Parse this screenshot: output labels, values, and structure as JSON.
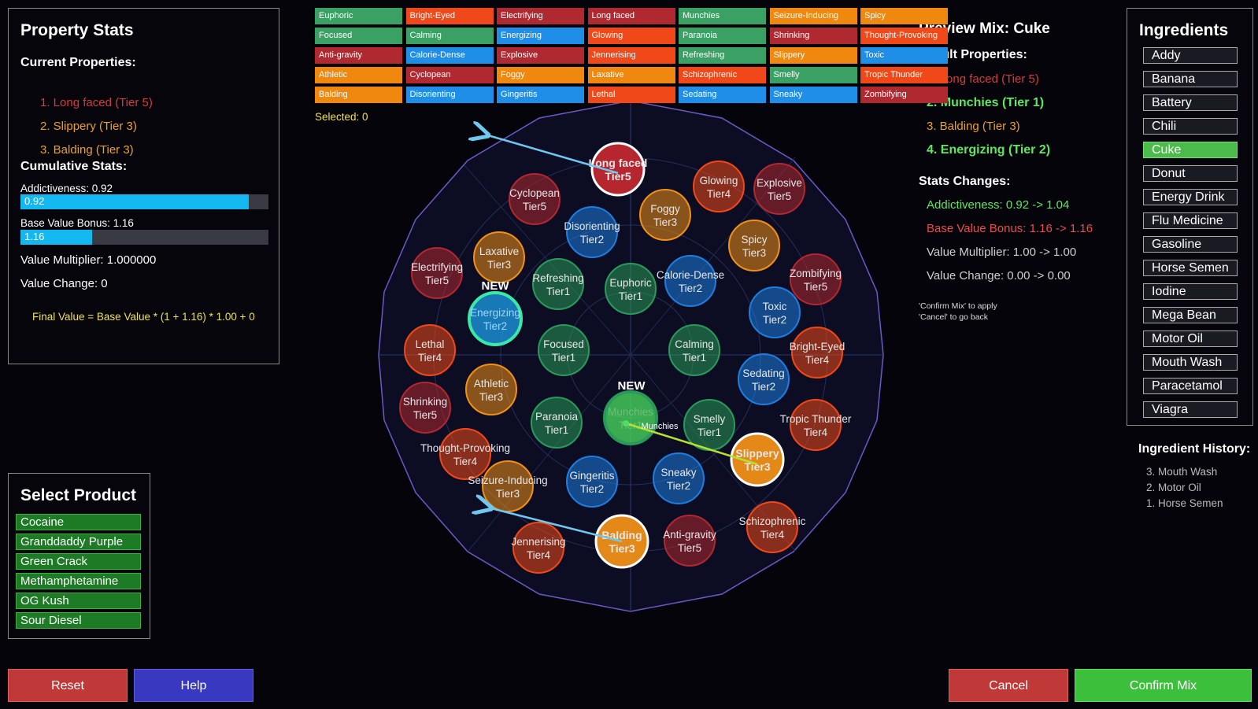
{
  "property_stats": {
    "title": "Property Stats",
    "current_header": "Current Properties:",
    "current": [
      {
        "text": "1. Long faced (Tier 5)",
        "color": "#d83a3a"
      },
      {
        "text": "2. Slippery (Tier 3)",
        "color": "#f0a020"
      },
      {
        "text": "3. Balding (Tier 3)",
        "color": "#f0a020"
      }
    ],
    "cumulative_header": "Cumulative Stats:",
    "addictiveness_label": "Addictiveness: 0.92",
    "addictiveness_bar_text": "0.92",
    "addictiveness_fraction": 0.92,
    "base_value_label": "Base Value Bonus: 1.16",
    "base_value_bar_text": "1.16",
    "base_value_fraction": 0.29,
    "value_multiplier": "Value Multiplier: 1.000000",
    "value_change": "Value Change: 0",
    "formula": "Final Value = Base Value * (1 + 1.16) * 1.00 + 0"
  },
  "select_product": {
    "title": "Select Product",
    "items": [
      "Cocaine",
      "Granddaddy Purple",
      "Green Crack",
      "Methamphetamine",
      "OG Kush",
      "Sour Diesel"
    ]
  },
  "buttons": {
    "reset": "Reset",
    "help": "Help",
    "cancel": "Cancel",
    "confirm": "Confirm Mix"
  },
  "tags": {
    "selected": "Selected: 0",
    "items": [
      [
        "Euphoric",
        "#3aa064"
      ],
      [
        "Bright-Eyed",
        "#f04818"
      ],
      [
        "Electrifying",
        "#b02830"
      ],
      [
        "Long faced",
        "#b02830"
      ],
      [
        "Munchies",
        "#3aa064"
      ],
      [
        "Seizure-Inducing",
        "#f08810"
      ],
      [
        "Spicy",
        "#f08810"
      ],
      [
        "Focused",
        "#3aa064"
      ],
      [
        "Calming",
        "#3aa064"
      ],
      [
        "Energizing",
        "#1e8ee8"
      ],
      [
        "Glowing",
        "#f04818"
      ],
      [
        "Paranoia",
        "#3aa064"
      ],
      [
        "Shrinking",
        "#b02830"
      ],
      [
        "Thought-Provoking",
        "#f04818"
      ],
      [
        "Anti-gravity",
        "#b02830"
      ],
      [
        "Calorie-Dense",
        "#1e8ee8"
      ],
      [
        "Explosive",
        "#b02830"
      ],
      [
        "Jennerising",
        "#f04818"
      ],
      [
        "Refreshing",
        "#3aa064"
      ],
      [
        "Slippery",
        "#f08810"
      ],
      [
        "Toxic",
        "#1e8ee8"
      ],
      [
        "Athletic",
        "#f08810"
      ],
      [
        "Cyclopean",
        "#b02830"
      ],
      [
        "Foggy",
        "#f08810"
      ],
      [
        "Laxative",
        "#f08810"
      ],
      [
        "Schizophrenic",
        "#f04818"
      ],
      [
        "Smelly",
        "#3aa064"
      ],
      [
        "Tropic Thunder",
        "#f04818"
      ],
      [
        "Balding",
        "#f08810"
      ],
      [
        "Disorienting",
        "#1e8ee8"
      ],
      [
        "Gingeritis",
        "#1e8ee8"
      ],
      [
        "Lethal",
        "#f04818"
      ],
      [
        "Sedating",
        "#1e8ee8"
      ],
      [
        "Sneaky",
        "#1e8ee8"
      ],
      [
        "Zombifying",
        "#b02830"
      ]
    ]
  },
  "wheel": {
    "nodes": [
      {
        "name": "Long faced",
        "tier": "Tier5",
        "color": "#c02830",
        "state": "active"
      },
      {
        "name": "Cyclopean",
        "tier": "Tier5",
        "color": "#b02830",
        "state": "normal"
      },
      {
        "name": "Disorienting",
        "tier": "Tier2",
        "color": "#1e7ee0",
        "state": "normal"
      },
      {
        "name": "Foggy",
        "tier": "Tier3",
        "color": "#f09018",
        "state": "normal"
      },
      {
        "name": "Glowing",
        "tier": "Tier4",
        "color": "#f04818",
        "state": "normal"
      },
      {
        "name": "Explosive",
        "tier": "Tier5",
        "color": "#b02830",
        "state": "normal"
      },
      {
        "name": "Spicy",
        "tier": "Tier3",
        "color": "#f09018",
        "state": "normal"
      },
      {
        "name": "Zombifying",
        "tier": "Tier5",
        "color": "#b02830",
        "state": "normal"
      },
      {
        "name": "Laxative",
        "tier": "Tier3",
        "color": "#f09018",
        "state": "normal"
      },
      {
        "name": "Electrifying",
        "tier": "Tier5",
        "color": "#b02830",
        "state": "normal"
      },
      {
        "name": "Refreshing",
        "tier": "Tier1",
        "color": "#2a9a5a",
        "state": "normal"
      },
      {
        "name": "Euphoric",
        "tier": "Tier1",
        "color": "#2a9a5a",
        "state": "normal"
      },
      {
        "name": "Calorie-Dense",
        "tier": "Tier2",
        "color": "#1e7ee0",
        "state": "normal"
      },
      {
        "name": "Toxic",
        "tier": "Tier2",
        "color": "#1e7ee0",
        "state": "normal"
      },
      {
        "name": "Energizing",
        "tier": "Tier2",
        "color": "#1e9ee8",
        "state": "new"
      },
      {
        "name": "Lethal",
        "tier": "Tier4",
        "color": "#f04818",
        "state": "normal"
      },
      {
        "name": "Focused",
        "tier": "Tier1",
        "color": "#2a9a5a",
        "state": "normal"
      },
      {
        "name": "Calming",
        "tier": "Tier1",
        "color": "#2a9a5a",
        "state": "normal"
      },
      {
        "name": "Bright-Eyed",
        "tier": "Tier4",
        "color": "#f04818",
        "state": "normal"
      },
      {
        "name": "Athletic",
        "tier": "Tier3",
        "color": "#f09018",
        "state": "normal"
      },
      {
        "name": "Sedating",
        "tier": "Tier2",
        "color": "#1e7ee0",
        "state": "normal"
      },
      {
        "name": "Shrinking",
        "tier": "Tier5",
        "color": "#b02830",
        "state": "normal"
      },
      {
        "name": "Paranoia",
        "tier": "Tier1",
        "color": "#2a9a5a",
        "state": "normal"
      },
      {
        "name": "Munchies",
        "tier": "Tier1",
        "color": "#4ae060",
        "state": "new"
      },
      {
        "name": "Smelly",
        "tier": "Tier1",
        "color": "#2a9a5a",
        "state": "normal"
      },
      {
        "name": "Tropic Thunder",
        "tier": "Tier4",
        "color": "#f04818",
        "state": "normal"
      },
      {
        "name": "Thought-Provoking",
        "tier": "Tier4",
        "color": "#f04818",
        "state": "normal"
      },
      {
        "name": "Slippery",
        "tier": "Tier3",
        "color": "#f09018",
        "state": "active"
      },
      {
        "name": "Seizure-Inducing",
        "tier": "Tier3",
        "color": "#f09018",
        "state": "normal"
      },
      {
        "name": "Gingeritis",
        "tier": "Tier2",
        "color": "#1e7ee0",
        "state": "normal"
      },
      {
        "name": "Sneaky",
        "tier": "Tier2",
        "color": "#1e7ee0",
        "state": "normal"
      },
      {
        "name": "Schizophrenic",
        "tier": "Tier4",
        "color": "#f04818",
        "state": "normal"
      },
      {
        "name": "Jennerising",
        "tier": "Tier4",
        "color": "#f04818",
        "state": "normal"
      },
      {
        "name": "Balding",
        "tier": "Tier3",
        "color": "#f09018",
        "state": "active"
      },
      {
        "name": "Anti-gravity",
        "tier": "Tier5",
        "color": "#b02830",
        "state": "normal"
      }
    ],
    "new_label": "NEW",
    "munchies_label": "Munchies"
  },
  "preview": {
    "title": "Preview Mix: Cuke",
    "result_header": "Result Properties:",
    "results": [
      {
        "text": "1. Long faced (Tier 5)",
        "color": "#d83a3a",
        "bold": false
      },
      {
        "text": "2. Munchies (Tier 1)",
        "color": "#5ee85e",
        "bold": true
      },
      {
        "text": "3. Balding (Tier 3)",
        "color": "#f0a020",
        "bold": false
      },
      {
        "text": "4. Energizing (Tier 2)",
        "color": "#5ee85e",
        "bold": true
      }
    ],
    "stats_header": "Stats Changes:",
    "changes": [
      {
        "text": "Addictiveness: 0.92 -> 1.04",
        "color": "#5ee85e"
      },
      {
        "text": "Base Value Bonus: 1.16 -> 1.16",
        "color": "#ee4a4a"
      },
      {
        "text": "Value Multiplier: 1.00 -> 1.00",
        "color": "#cfcfcf"
      },
      {
        "text": "Value Change: 0.00 -> 0.00",
        "color": "#cfcfcf"
      }
    ],
    "hint1": "'Confirm Mix' to apply",
    "hint2": "'Cancel' to go back"
  },
  "ingredients": {
    "title": "Ingredients",
    "selected": "Cuke",
    "items": [
      "Addy",
      "Banana",
      "Battery",
      "Chili",
      "Cuke",
      "Donut",
      "Energy Drink",
      "Flu Medicine",
      "Gasoline",
      "Horse Semen",
      "Iodine",
      "Mega Bean",
      "Motor Oil",
      "Mouth Wash",
      "Paracetamol",
      "Viagra"
    ]
  },
  "history": {
    "title": "Ingredient History:",
    "items": [
      "3. Mouth Wash",
      "2. Motor Oil",
      "1. Horse Semen"
    ]
  }
}
